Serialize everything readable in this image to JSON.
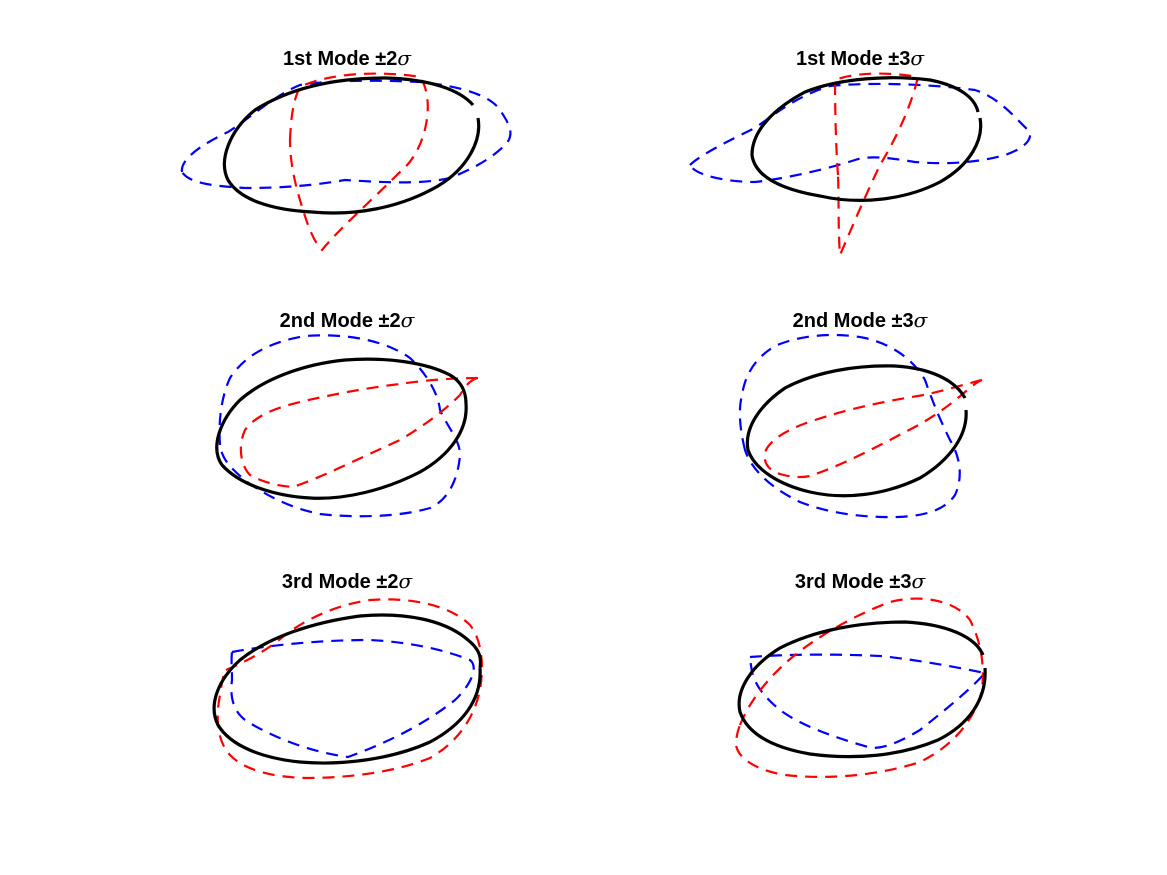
{
  "figure": {
    "colors": {
      "mean": "#000000",
      "plus": "#ff0000",
      "minus": "#0000ff"
    },
    "panels": [
      {
        "title_text": "1st Mode ±2",
        "title_symbol": "σ",
        "mode": 1,
        "k": 2
      },
      {
        "title_text": "1st Mode ±3",
        "title_symbol": "σ",
        "mode": 1,
        "k": 3
      },
      {
        "title_text": "2nd Mode ±2",
        "title_symbol": "σ",
        "mode": 2,
        "k": 2
      },
      {
        "title_text": "2nd Mode ±3",
        "title_symbol": "σ",
        "mode": 2,
        "k": 3
      },
      {
        "title_text": "3rd Mode ±2",
        "title_symbol": "σ",
        "mode": 3,
        "k": 2
      },
      {
        "title_text": "3rd Mode ±3",
        "title_symbol": "σ",
        "mode": 3,
        "k": 3
      }
    ]
  }
}
